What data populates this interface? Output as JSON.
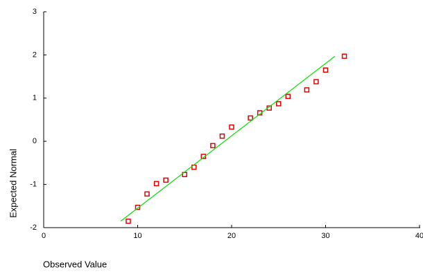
{
  "chart_data": {
    "type": "scatter",
    "x_label": "Observed Value",
    "y_label": "Expected Normal",
    "xlim": [
      0,
      40
    ],
    "ylim": [
      -2,
      3
    ],
    "xticks": [
      0,
      10,
      20,
      30,
      40
    ],
    "yticks": [
      -2,
      -1,
      0,
      1,
      2,
      3
    ],
    "series": [
      {
        "color": "#e00000",
        "marker": "square",
        "x": [
          9,
          10,
          11,
          12,
          13,
          15,
          16,
          17,
          18,
          19,
          20,
          22,
          23,
          24,
          25,
          26,
          28,
          29,
          30,
          32
        ],
        "values": [
          -1.85,
          -1.53,
          -1.22,
          -0.98,
          -0.9,
          -0.77,
          -0.6,
          -0.35,
          -0.1,
          0.12,
          0.33,
          0.54,
          0.66,
          0.77,
          0.87,
          1.04,
          1.19,
          1.38,
          1.65,
          1.97
        ]
      },
      {
        "color": "#00e000",
        "marker": "line",
        "x": [
          8.2,
          31
        ],
        "values": [
          -1.85,
          1.97
        ]
      }
    ]
  }
}
